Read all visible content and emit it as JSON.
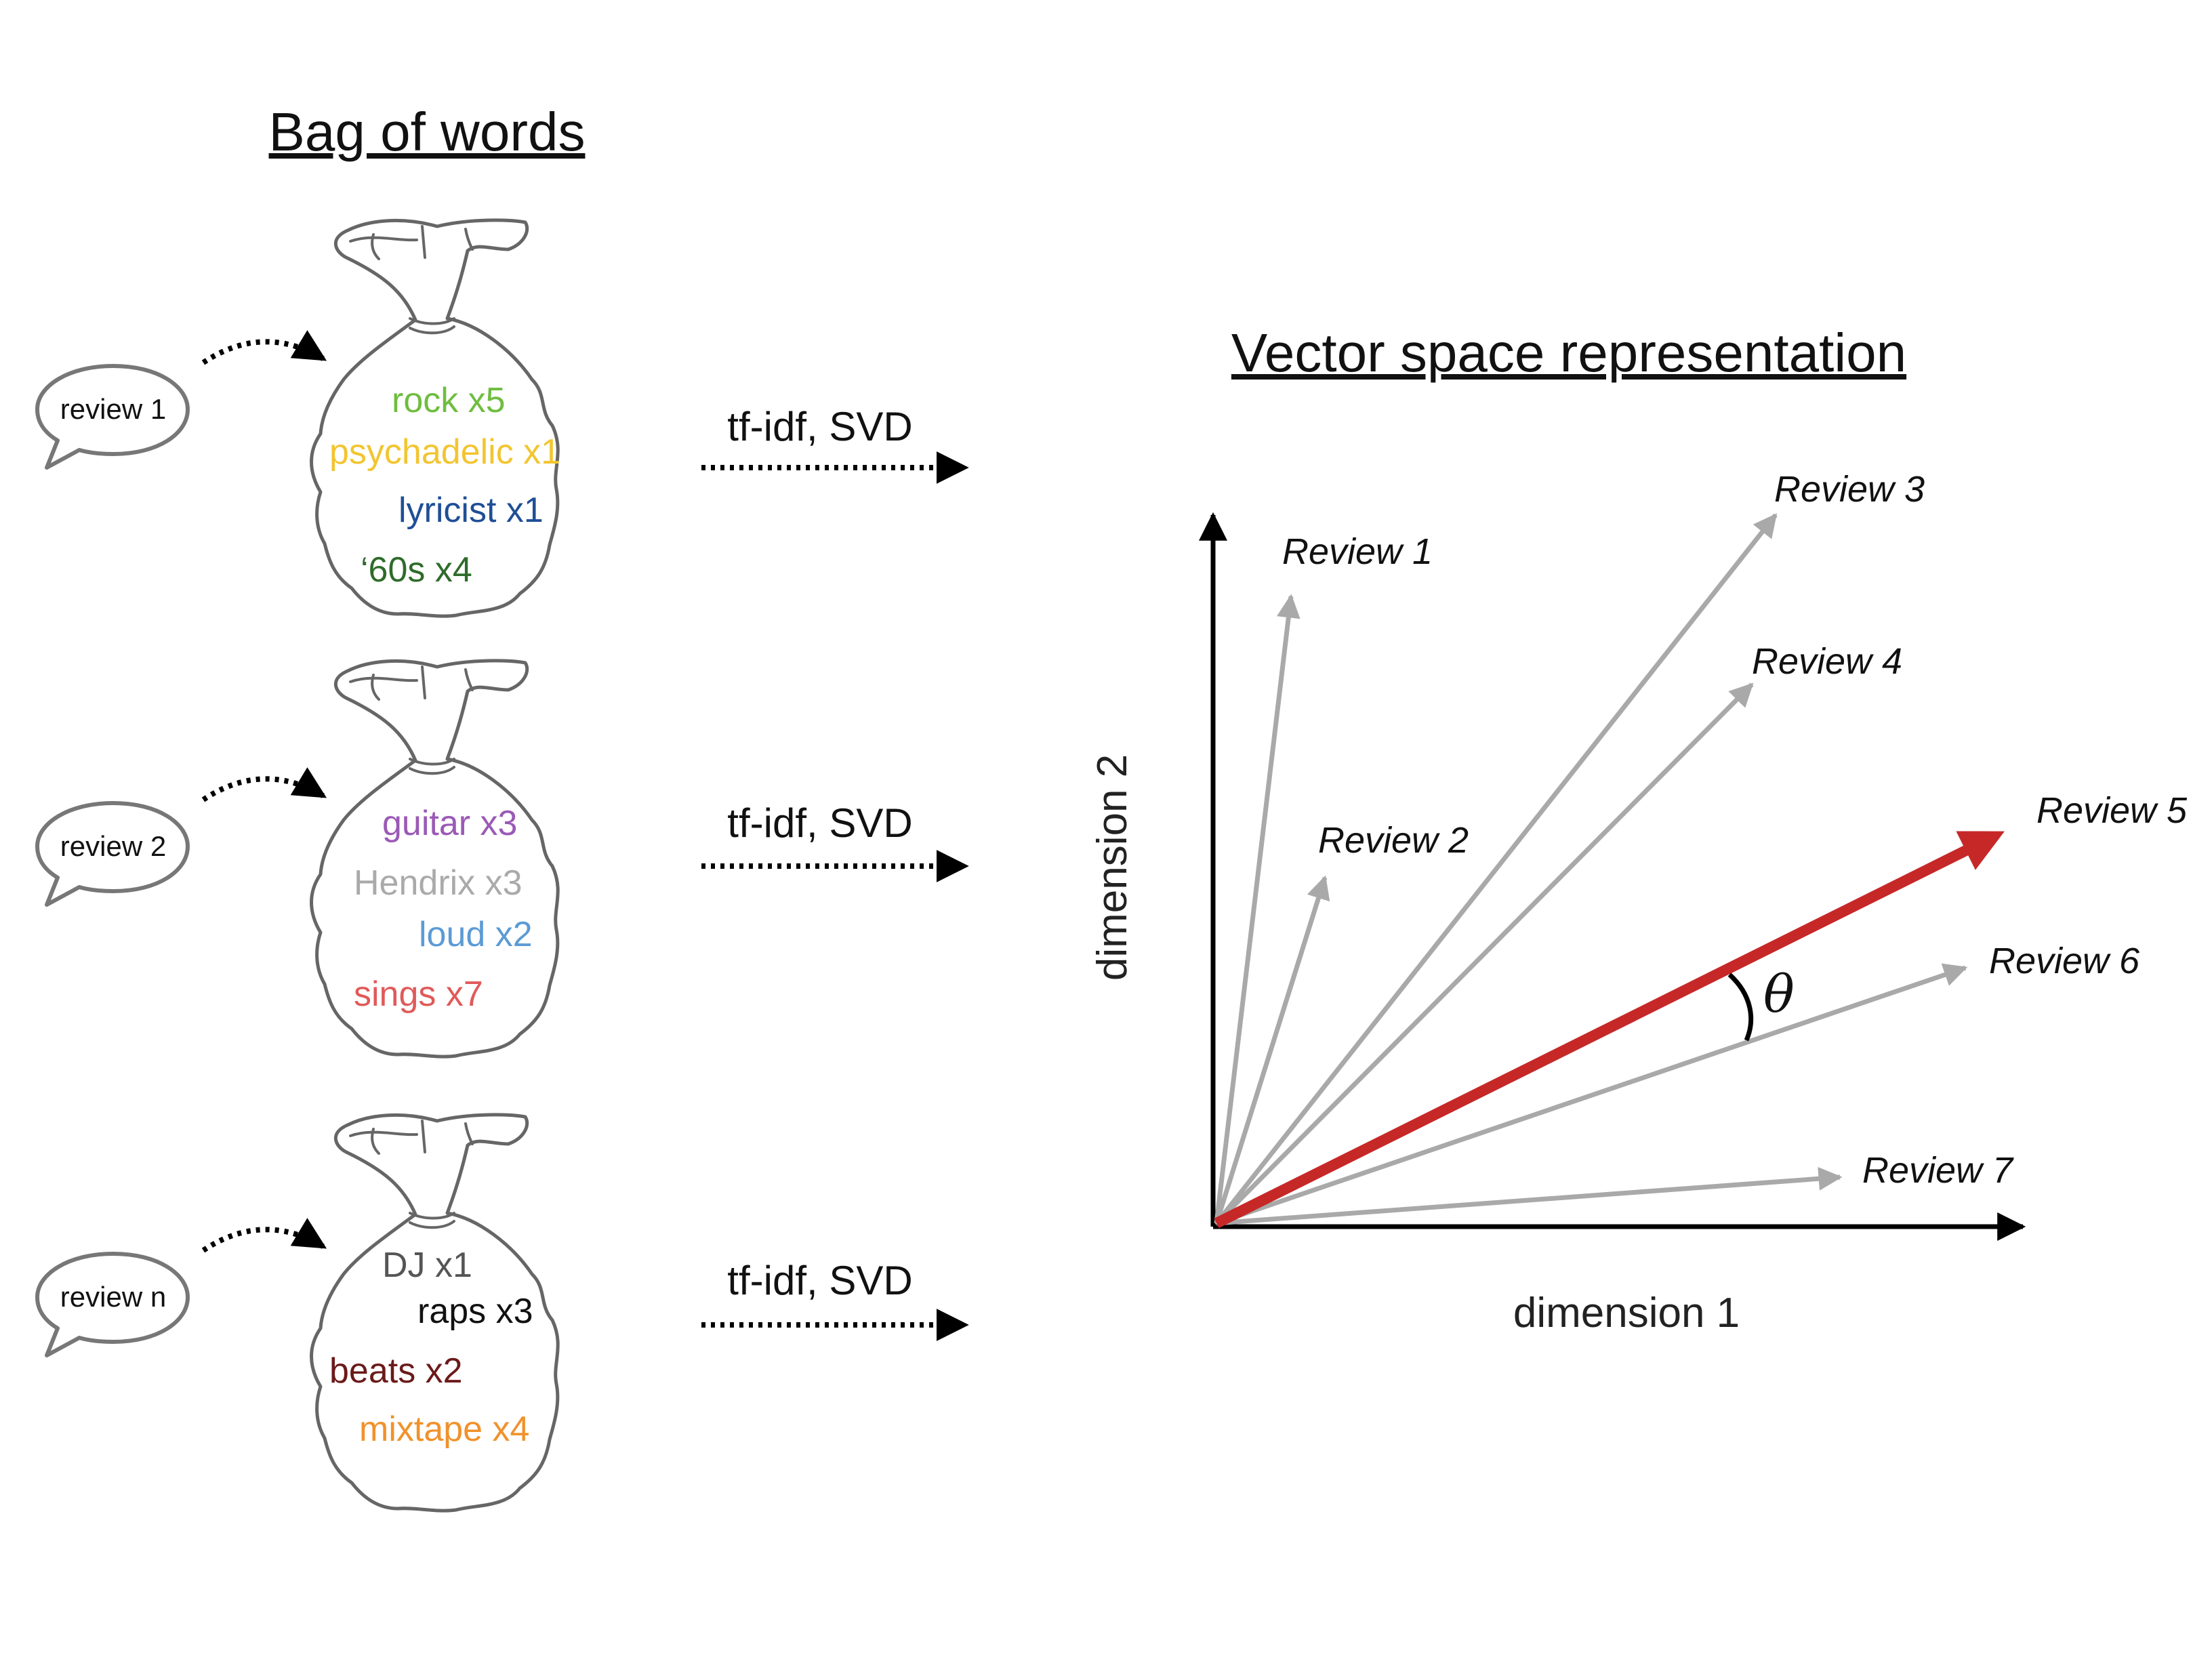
{
  "headings": {
    "left": "Bag of words",
    "right": "Vector space representation"
  },
  "reviews": [
    {
      "bubble": "review 1",
      "process": "tf-idf, SVD",
      "words": [
        {
          "text": "rock x5",
          "color": "#6fbd3f"
        },
        {
          "text": "psychadelic x1",
          "color": "#f2c530"
        },
        {
          "text": "lyricist x1",
          "color": "#1f4f96"
        },
        {
          "text": "‘60s x4",
          "color": "#2e6b2a"
        }
      ]
    },
    {
      "bubble": "review 2",
      "process": "tf-idf, SVD",
      "words": [
        {
          "text": "guitar x3",
          "color": "#9b59b6"
        },
        {
          "text": "Hendrix x3",
          "color": "#aaaaaa"
        },
        {
          "text": "loud x2",
          "color": "#5b9bd5"
        },
        {
          "text": "sings x7",
          "color": "#e05a5a"
        }
      ]
    },
    {
      "bubble": "review n",
      "process": "tf-idf, SVD",
      "words": [
        {
          "text": "DJ x1",
          "color": "#555555"
        },
        {
          "text": "raps x3",
          "color": "#111111"
        },
        {
          "text": "beats x2",
          "color": "#6b1a1a"
        },
        {
          "text": "mixtape x4",
          "color": "#f0922c"
        }
      ]
    }
  ],
  "plot": {
    "xlabel": "dimension 1",
    "ylabel": "dimension 2",
    "angle_label": "θ",
    "vectors": [
      {
        "label": "Review 1",
        "highlight": false
      },
      {
        "label": "Review 2",
        "highlight": false
      },
      {
        "label": "Review 3",
        "highlight": false
      },
      {
        "label": "Review 4",
        "highlight": false
      },
      {
        "label": "Review 5",
        "highlight": true
      },
      {
        "label": "Review 6",
        "highlight": false
      },
      {
        "label": "Review 7",
        "highlight": false
      }
    ],
    "colors": {
      "vector": "#a9a9a9",
      "highlight": "#c62828",
      "axis": "#000000"
    }
  }
}
